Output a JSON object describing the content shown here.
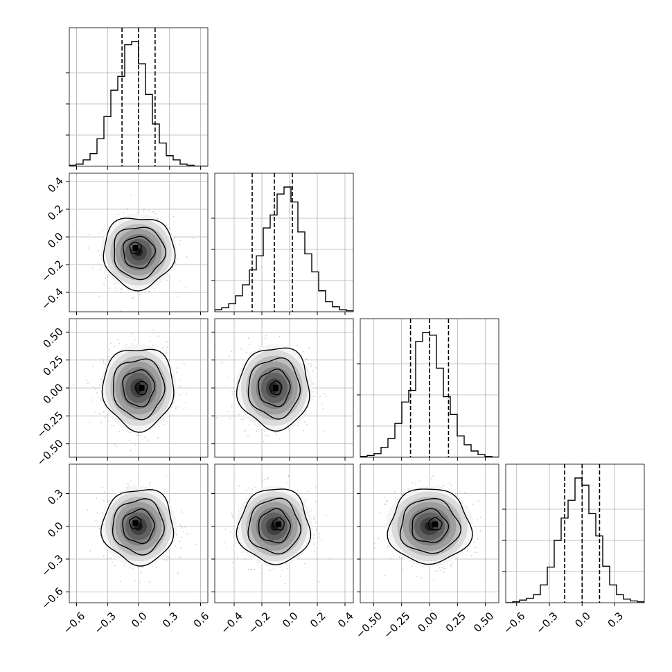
{
  "chart_data": {
    "type": "corner",
    "n_params": 4,
    "grid": true,
    "colors": {
      "line": "#000000",
      "grid": "#b0b0b0",
      "scatter": "#9a9a9a"
    },
    "params": [
      {
        "lim": [
          -0.67,
          0.67
        ],
        "ticks": [
          -0.6,
          -0.3,
          0.0,
          0.3,
          0.6
        ],
        "tick_labels": [
          "−0.6",
          "−0.3",
          "0.0",
          "0.3",
          "0.6"
        ],
        "quantiles": [
          -0.16,
          0.0,
          0.16
        ],
        "hist": {
          "x0": -0.67,
          "dx": 0.067,
          "counts": [
            1,
            2,
            6,
            12,
            26,
            47,
            72,
            85,
            115,
            118,
            97,
            68,
            40,
            22,
            10,
            6,
            2,
            1,
            0,
            0
          ]
        }
      },
      {
        "lim": [
          -0.54,
          0.46
        ],
        "ticks": [
          -0.4,
          -0.2,
          0.0,
          0.2,
          0.4
        ],
        "tick_labels": [
          "−0.4",
          "−0.2",
          "0.0",
          "0.2",
          "0.4"
        ],
        "quantiles": [
          -0.27,
          -0.11,
          0.02
        ],
        "hist": {
          "x0": -0.54,
          "dx": 0.05,
          "counts": [
            2,
            4,
            8,
            16,
            27,
            42,
            56,
            84,
            97,
            118,
            125,
            110,
            80,
            58,
            40,
            21,
            10,
            5,
            2,
            1
          ]
        }
      },
      {
        "lim": [
          -0.62,
          0.62
        ],
        "ticks": [
          -0.5,
          -0.25,
          0.0,
          0.25,
          0.5
        ],
        "tick_labels": [
          "−0.50",
          "−0.25",
          "0.00",
          "0.25",
          "0.50"
        ],
        "quantiles": [
          -0.17,
          0.0,
          0.17
        ],
        "hist": {
          "x0": -0.62,
          "dx": 0.062,
          "counts": [
            1,
            2,
            4,
            11,
            21,
            38,
            62,
            75,
            130,
            140,
            137,
            100,
            68,
            48,
            24,
            14,
            7,
            3,
            1,
            0
          ]
        }
      },
      {
        "lim": [
          -0.7,
          0.57
        ],
        "ticks": [
          -0.6,
          -0.3,
          0.0,
          0.3
        ],
        "tick_labels": [
          "−0.6",
          "−0.3",
          "0.0",
          "0.3"
        ],
        "quantiles": [
          -0.16,
          0.0,
          0.16
        ],
        "hist": {
          "x0": -0.7,
          "dx": 0.0635,
          "counts": [
            0,
            1,
            3,
            5,
            9,
            20,
            40,
            70,
            95,
            115,
            140,
            132,
            100,
            75,
            41,
            20,
            9,
            4,
            2,
            1
          ]
        }
      }
    ],
    "pairs": [
      {
        "row": 1,
        "col": 0,
        "center": [
          0.0,
          -0.11
        ],
        "sd": [
          0.16,
          0.12
        ],
        "mode": [
          -0.03,
          -0.08
        ]
      },
      {
        "row": 2,
        "col": 0,
        "center": [
          0.0,
          0.0
        ],
        "sd": [
          0.16,
          0.17
        ],
        "mode": [
          0.03,
          0.0
        ]
      },
      {
        "row": 2,
        "col": 1,
        "center": [
          -0.11,
          0.0
        ],
        "sd": [
          0.12,
          0.17
        ],
        "mode": [
          -0.1,
          0.0
        ]
      },
      {
        "row": 3,
        "col": 0,
        "center": [
          0.0,
          0.0
        ],
        "sd": [
          0.16,
          0.16
        ],
        "mode": [
          -0.03,
          0.03
        ]
      },
      {
        "row": 3,
        "col": 1,
        "center": [
          -0.11,
          0.0
        ],
        "sd": [
          0.12,
          0.16
        ],
        "mode": [
          -0.08,
          0.02
        ]
      },
      {
        "row": 3,
        "col": 2,
        "center": [
          0.0,
          0.0
        ],
        "sd": [
          0.17,
          0.16
        ],
        "mode": [
          0.05,
          0.02
        ]
      }
    ],
    "contour_levels": [
      0.12,
      0.39,
      0.68,
      0.92
    ],
    "density_shades": [
      0.96,
      0.86,
      0.74,
      0.62,
      0.5,
      0.38,
      0.26,
      0.12
    ]
  }
}
